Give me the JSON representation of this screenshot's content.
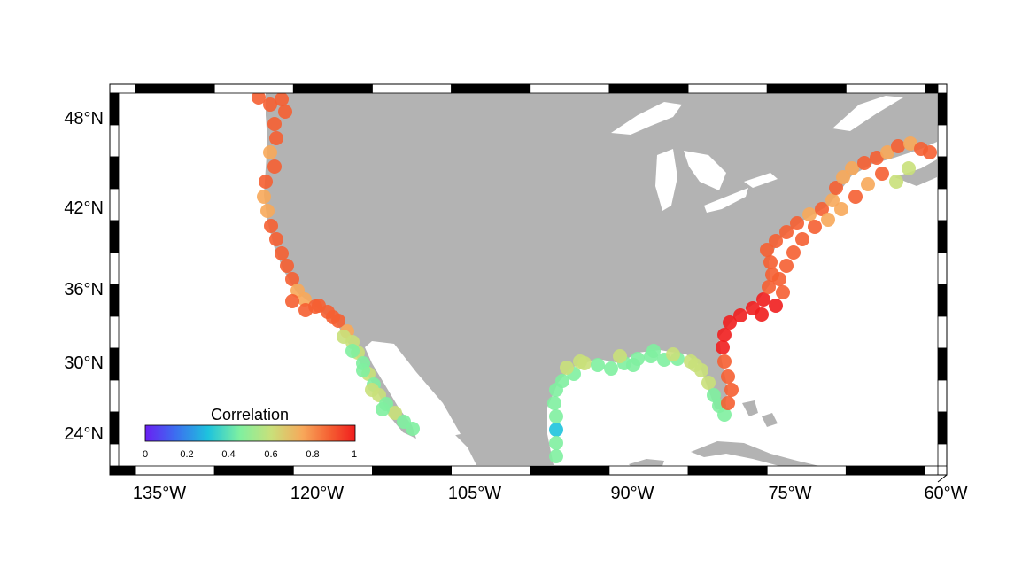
{
  "map": {
    "land_color": "#b3b3b3",
    "water_color": "#ffffff",
    "frame_colors": [
      "#000000",
      "#ffffff"
    ],
    "lon_ticks": [
      "135°W",
      "120°W",
      "105°W",
      "90°W",
      "75°W",
      "60°W"
    ],
    "lat_ticks": [
      "48°N",
      "42°N",
      "36°N",
      "30°N",
      "24°N"
    ]
  },
  "colorbar": {
    "title": "Correlation",
    "ticks": [
      "0",
      "0.2",
      "0.4",
      "0.6",
      "0.8",
      "1"
    ],
    "colormap": [
      "#6a1ff2",
      "#3d6cf0",
      "#1ec3dd",
      "#7ff0a0",
      "#c9e07a",
      "#f7a85a",
      "#f55f32",
      "#f01e1e"
    ],
    "range": [
      0,
      1
    ]
  }
}
